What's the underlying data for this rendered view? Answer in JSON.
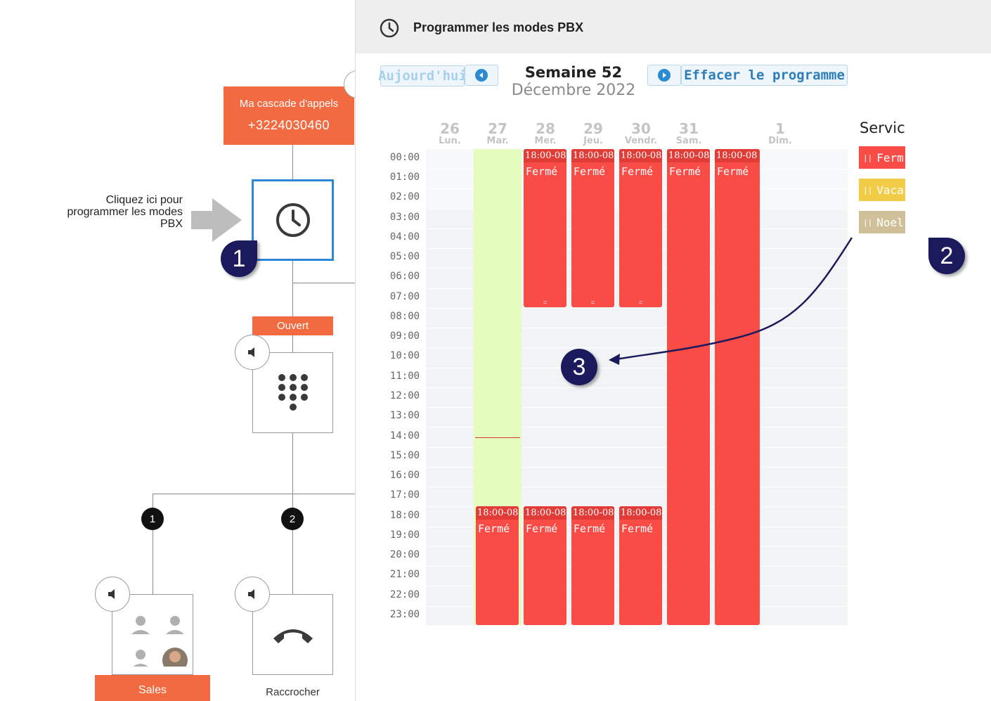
{
  "flow": {
    "cascade_title": "Ma cascade d'appels",
    "cascade_number": "+3224030460",
    "hint_text": [
      "Cliquez ici pour",
      "programmer les modes",
      "PBX"
    ],
    "open_label": "Ouvert",
    "branch_numbers": [
      "1",
      "2"
    ],
    "sales_label": "Sales",
    "hangup_label": "Raccrocher"
  },
  "callouts": [
    "1",
    "2",
    "3"
  ],
  "panel": {
    "title": "Programmer les modes PBX",
    "today_button": "Aujourd'hui",
    "week_label": "Semaine 52",
    "month_label": "Décembre 2022",
    "clear_button": "Effacer le programme",
    "days": [
      {
        "num": "26",
        "label": "Lun."
      },
      {
        "num": "27",
        "label": "Mar."
      },
      {
        "num": "28",
        "label": "Mer."
      },
      {
        "num": "29",
        "label": "Jeu."
      },
      {
        "num": "30",
        "label": "Vendr."
      },
      {
        "num": "31",
        "label": "Sam."
      },
      {
        "num": "1",
        "label": "Dim."
      }
    ],
    "hours": [
      "00:00",
      "01:00",
      "02:00",
      "03:00",
      "04:00",
      "05:00",
      "06:00",
      "07:00",
      "08:00",
      "09:00",
      "10:00",
      "11:00",
      "12:00",
      "13:00",
      "14:00",
      "15:00",
      "16:00",
      "17:00",
      "18:00",
      "19:00",
      "20:00",
      "21:00",
      "22:00",
      "23:00"
    ],
    "event_time": "18:00-08",
    "event_label": "Fermé",
    "services_title": "Servic",
    "services": [
      {
        "label": "Ferm",
        "color": "#f94c46"
      },
      {
        "label": "Vacar",
        "color": "#f2cc47"
      },
      {
        "label": "Noel",
        "color": "#cfc09a"
      }
    ]
  },
  "colors": {
    "accent_orange": "#f26a3f",
    "closed_red": "#f94c46",
    "today_green": "#e4fcbd",
    "selected_blue": "#2e86d6",
    "callout_navy": "#1a1a5c"
  }
}
